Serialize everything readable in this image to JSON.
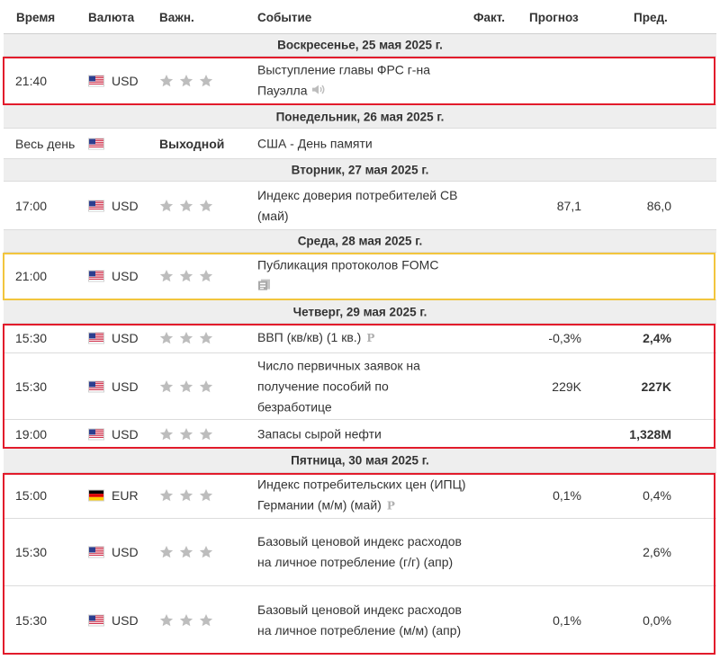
{
  "header": {
    "time": "Время",
    "currency": "Валюта",
    "importance": "Важн.",
    "event": "Событие",
    "actual": "Факт.",
    "forecast": "Прогноз",
    "previous": "Пред."
  },
  "days": [
    {
      "label": "Воскресенье, 25 мая 2025 г."
    },
    {
      "label": "Понедельник, 26 мая 2025 г."
    },
    {
      "label": "Вторник, 27 мая 2025 г."
    },
    {
      "label": "Среда, 28 мая 2025 г."
    },
    {
      "label": "Четверг, 29 мая 2025 г."
    },
    {
      "label": "Пятница, 30 мая 2025 г."
    }
  ],
  "events": [
    {
      "time": "21:40",
      "currency": "USD",
      "flag": "us-flag",
      "importance": 3,
      "event": "Выступление главы ФРС г-на Пауэлла",
      "icon": "speaker-icon",
      "actual": "",
      "forecast": "",
      "previous": ""
    },
    {
      "time": "Весь день",
      "currency": "",
      "flag": "us-flag",
      "holiday": "Выходной",
      "event": "США - День памяти",
      "actual": "",
      "forecast": "",
      "previous": ""
    },
    {
      "time": "17:00",
      "currency": "USD",
      "flag": "us-flag",
      "importance": 3,
      "event": "Индекс доверия потребителей CB (май)",
      "actual": "",
      "forecast": "87,1",
      "previous": "86,0"
    },
    {
      "time": "21:00",
      "currency": "USD",
      "flag": "us-flag",
      "importance": 3,
      "event": "Публикация протоколов FOMC",
      "icon": "document-icon",
      "actual": "",
      "forecast": "",
      "previous": ""
    },
    {
      "time": "15:30",
      "currency": "USD",
      "flag": "us-flag",
      "importance": 3,
      "event": "ВВП (кв/кв) (1 кв.)",
      "icon": "preliminary-icon",
      "actual": "",
      "forecast": "-0,3%",
      "previous": "2,4%"
    },
    {
      "time": "15:30",
      "currency": "USD",
      "flag": "us-flag",
      "importance": 3,
      "event": "Число первичных заявок на получение пособий по безработице",
      "actual": "",
      "forecast": "229K",
      "previous": "227K"
    },
    {
      "time": "19:00",
      "currency": "USD",
      "flag": "us-flag",
      "importance": 3,
      "event": "Запасы сырой нефти",
      "actual": "",
      "forecast": "",
      "previous": "1,328M"
    },
    {
      "time": "15:00",
      "currency": "EUR",
      "flag": "de-flag",
      "importance": 3,
      "event": "Индекс потребительских цен (ИПЦ) Германии (м/м) (май)",
      "icon": "preliminary-icon",
      "actual": "",
      "forecast": "0,1%",
      "previous": "0,4%"
    },
    {
      "time": "15:30",
      "currency": "USD",
      "flag": "us-flag",
      "importance": 3,
      "event": "Базовый ценовой индекс расходов на личное потребление (г/г) (апр)",
      "actual": "",
      "forecast": "",
      "previous": "2,6%"
    },
    {
      "time": "15:30",
      "currency": "USD",
      "flag": "us-flag",
      "importance": 3,
      "event": "Базовый ценовой индекс расходов на личное потребление (м/м) (апр)",
      "actual": "",
      "forecast": "0,1%",
      "previous": "0,0%"
    }
  ],
  "icons": {
    "p": "P"
  },
  "colors": {
    "highlight_red": "#e21b2b",
    "highlight_yellow": "#f2c53d",
    "day_bg": "#eeeeee",
    "star": "#bdbdbd"
  }
}
